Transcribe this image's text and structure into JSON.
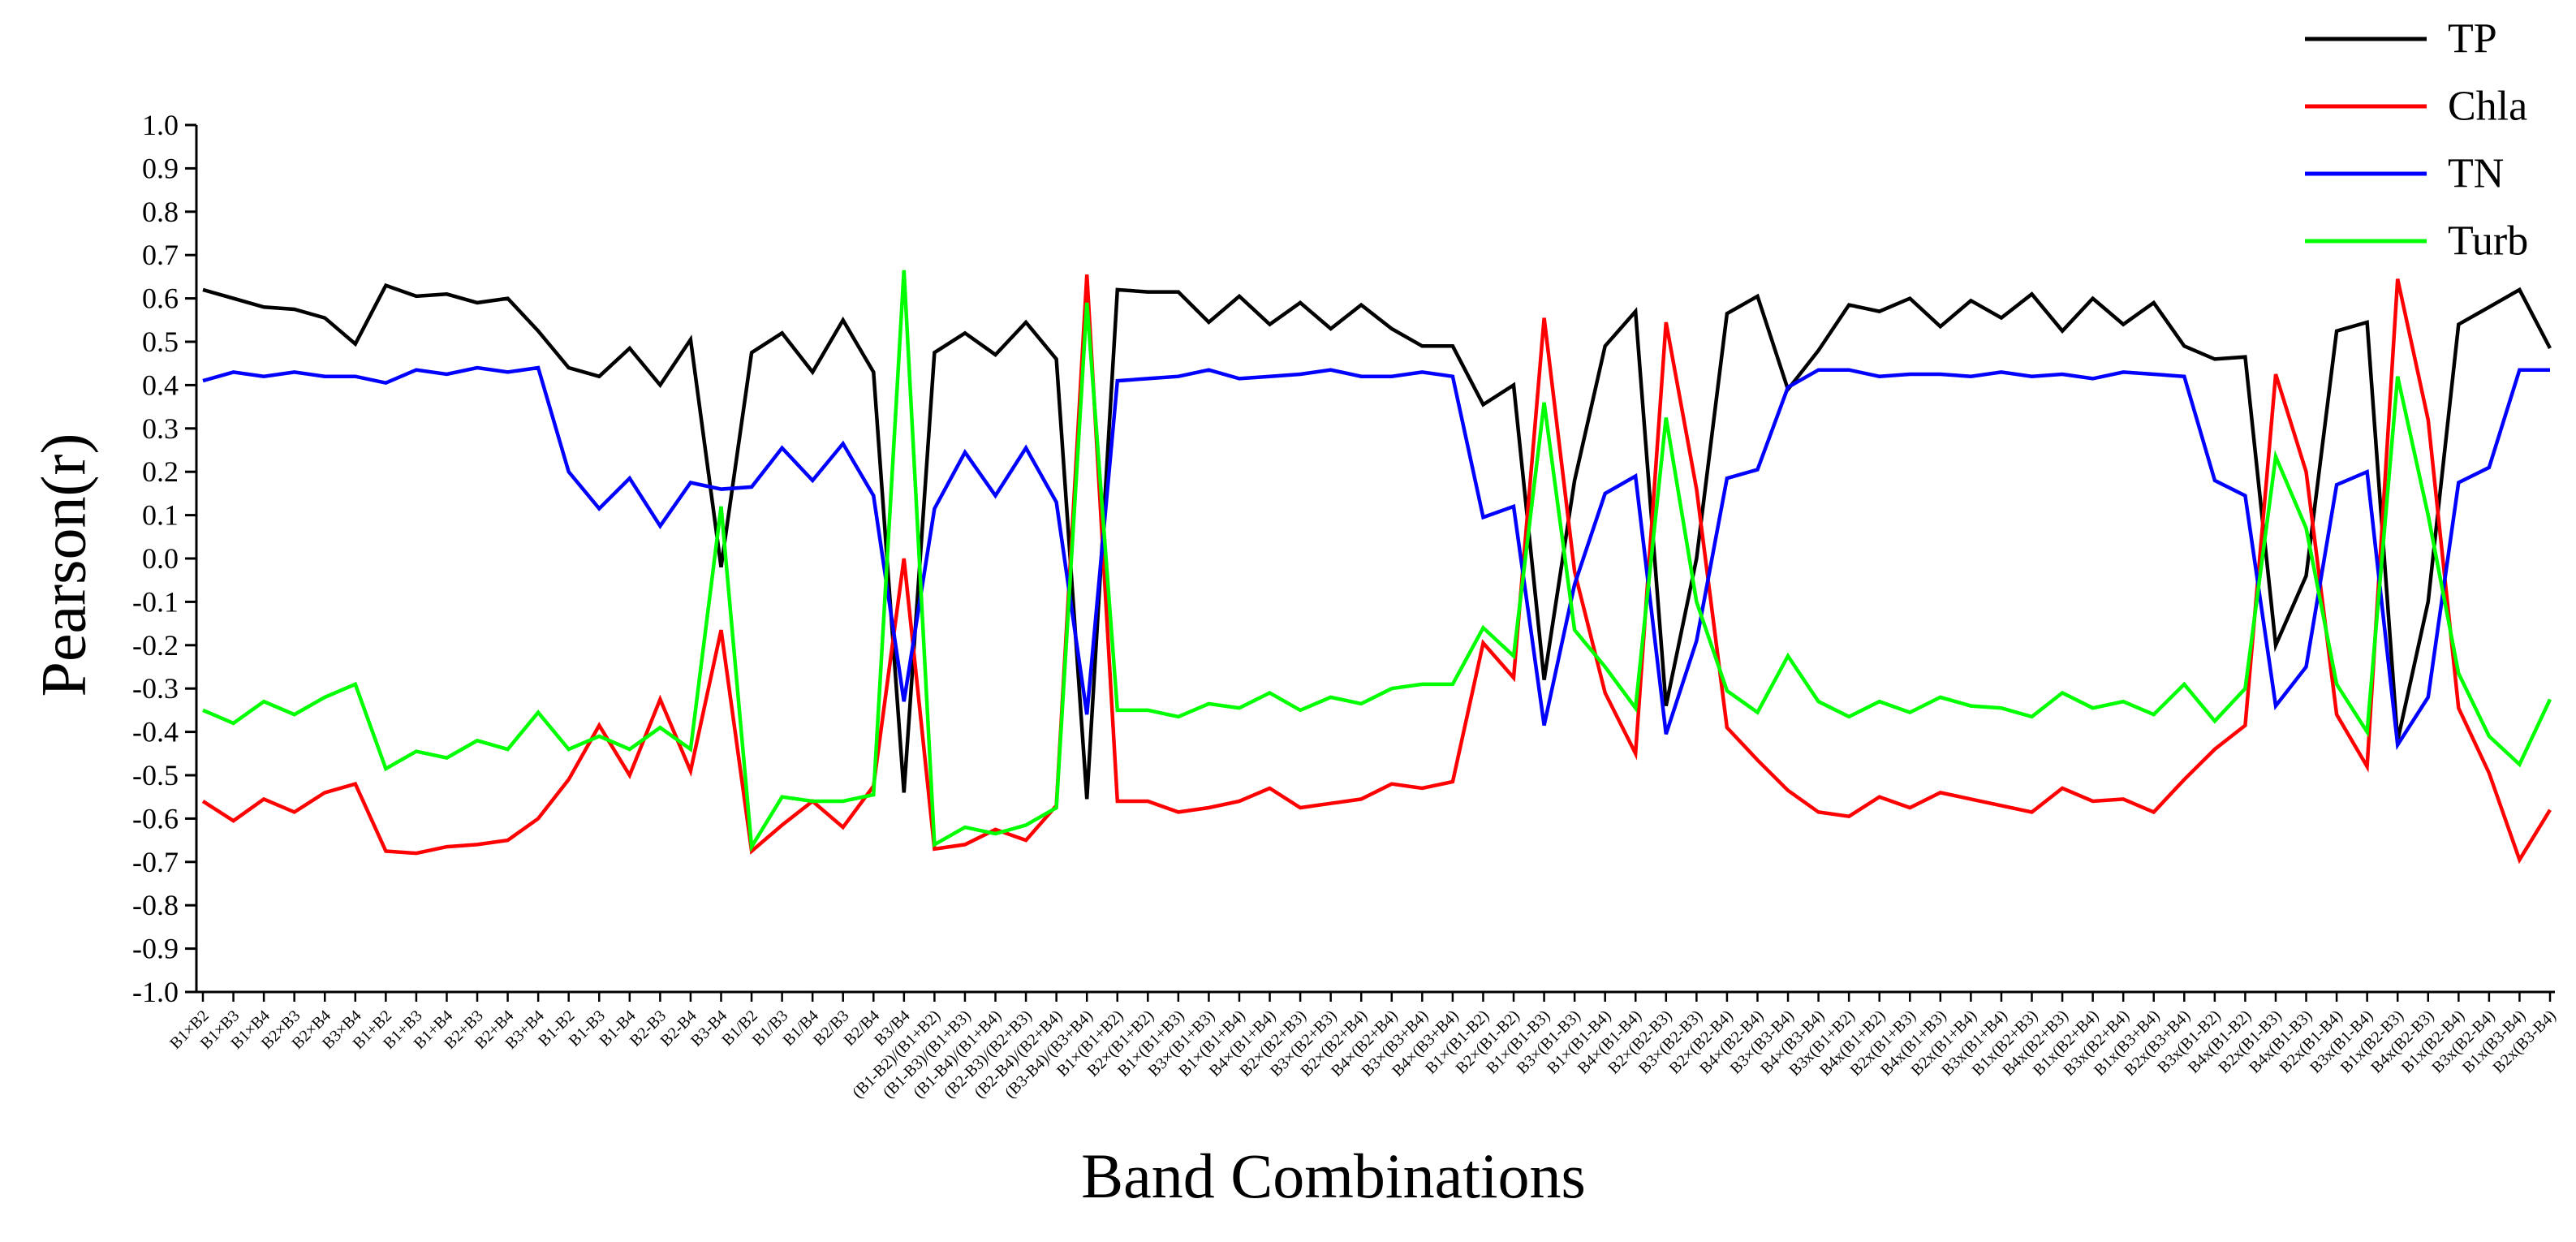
{
  "chart_data": {
    "type": "line",
    "xlabel": "Band Combinations",
    "ylabel": "Pearson(r)",
    "ylim": [
      -1.0,
      1.0
    ],
    "yticks": [
      1.0,
      0.9,
      0.8,
      0.7,
      0.6,
      0.5,
      0.4,
      0.3,
      0.2,
      0.1,
      0.0,
      -0.1,
      -0.2,
      -0.3,
      -0.4,
      -0.5,
      -0.6,
      -0.7,
      -0.8,
      -0.9,
      -1.0
    ],
    "ytick_labels": [
      "1.0",
      "0.9",
      "0.8",
      "0.7",
      "0.6",
      "0.5",
      "0.4",
      "0.3",
      "0.2",
      "0.1",
      "0.0",
      "-0.1",
      "-0.2",
      "-0.3",
      "-0.4",
      "-0.5",
      "-0.6",
      "-0.7",
      "-0.8",
      "-0.9",
      "-1.0"
    ],
    "grid": false,
    "legend_position": "top-right",
    "categories": [
      "B1×B2",
      "B1×B3",
      "B1×B4",
      "B2×B3",
      "B2×B4",
      "B3×B4",
      "B1+B2",
      "B1+B3",
      "B1+B4",
      "B2+B3",
      "B2+B4",
      "B3+B4",
      "B1-B2",
      "B1-B3",
      "B1-B4",
      "B2-B3",
      "B2-B4",
      "B3-B4",
      "B1/B2",
      "B1/B3",
      "B1/B4",
      "B2/B3",
      "B2/B4",
      "B3/B4",
      "(B1-B2)/(B1+B2)",
      "(B1-B3)/(B1+B3)",
      "(B1-B4)/(B1+B4)",
      "(B2-B3)/(B2+B3)",
      "(B2-B4)/(B2+B4)",
      "(B3-B4)/(B3+B4)",
      "B1×(B1+B2)",
      "B2×(B1+B2)",
      "B1×(B1+B3)",
      "B3×(B1+B3)",
      "B1×(B1+B4)",
      "B4×(B1+B4)",
      "B2×(B2+B3)",
      "B3×(B2+B3)",
      "B2×(B2+B4)",
      "B4×(B2+B4)",
      "B3×(B3+B4)",
      "B4×(B3+B4)",
      "B1×(B1-B2)",
      "B2×(B1-B2)",
      "B1×(B1-B3)",
      "B3×(B1-B3)",
      "B1×(B1-B4)",
      "B4×(B1-B4)",
      "B2×(B2-B3)",
      "B3×(B2-B3)",
      "B2×(B2-B4)",
      "B4×(B2-B4)",
      "B3×(B3-B4)",
      "B4×(B3-B4)",
      "B3x(B1+B2)",
      "B4x(B1+B2)",
      "B2x(B1+B3)",
      "B4x(B1+B3)",
      "B2x(B1+B4)",
      "B3x(B1+B4)",
      "B1x(B2+B3)",
      "B4x(B2+B3)",
      "B1x(B2+B4)",
      "B3x(B2+B4)",
      "B1x(B3+B4)",
      "B2x(B3+B4)",
      "B3x(B1-B2)",
      "B4x(B1-B2)",
      "B2x(B1-B3)",
      "B4x(B1-B3)",
      "B2x(B1-B4)",
      "B3x(B1-B4)",
      "B1x(B2-B3)",
      "B4x(B2-B3)",
      "B1x(B2-B4)",
      "B3x(B2-B4)",
      "B1x(B3-B4)",
      "B2x(B3-B4)"
    ],
    "series": [
      {
        "name": "TP",
        "color": "#000000",
        "values": [
          0.62,
          0.6,
          0.58,
          0.575,
          0.555,
          0.495,
          0.63,
          0.605,
          0.61,
          0.59,
          0.6,
          0.525,
          0.44,
          0.42,
          0.485,
          0.4,
          0.505,
          -0.02,
          0.475,
          0.52,
          0.43,
          0.55,
          0.43,
          -0.54,
          0.475,
          0.52,
          0.47,
          0.545,
          0.46,
          -0.555,
          0.62,
          0.615,
          0.615,
          0.545,
          0.605,
          0.54,
          0.59,
          0.53,
          0.585,
          0.53,
          0.49,
          0.49,
          0.355,
          0.4,
          -0.28,
          0.18,
          0.49,
          0.57,
          -0.34,
          0.0,
          0.565,
          0.605,
          0.39,
          0.48,
          0.585,
          0.57,
          0.6,
          0.535,
          0.595,
          0.555,
          0.61,
          0.525,
          0.6,
          0.54,
          0.59,
          0.49,
          0.46,
          0.465,
          -0.2,
          -0.04,
          0.525,
          0.545,
          -0.42,
          -0.1,
          0.54,
          0.58,
          0.62,
          0.485
        ]
      },
      {
        "name": "Chla",
        "color": "#ff0000",
        "values": [
          -0.56,
          -0.605,
          -0.555,
          -0.585,
          -0.54,
          -0.52,
          -0.675,
          -0.68,
          -0.665,
          -0.66,
          -0.65,
          -0.6,
          -0.51,
          -0.385,
          -0.5,
          -0.325,
          -0.49,
          -0.165,
          -0.675,
          -0.615,
          -0.56,
          -0.62,
          -0.525,
          0.0,
          -0.67,
          -0.66,
          -0.625,
          -0.65,
          -0.57,
          0.655,
          -0.56,
          -0.56,
          -0.585,
          -0.575,
          -0.56,
          -0.53,
          -0.575,
          -0.565,
          -0.555,
          -0.52,
          -0.53,
          -0.515,
          -0.195,
          -0.275,
          0.555,
          -0.03,
          -0.31,
          -0.45,
          0.545,
          0.16,
          -0.39,
          -0.465,
          -0.535,
          -0.585,
          -0.595,
          -0.55,
          -0.575,
          -0.54,
          -0.555,
          -0.57,
          -0.585,
          -0.53,
          -0.56,
          -0.555,
          -0.585,
          -0.51,
          -0.44,
          -0.385,
          0.425,
          0.2,
          -0.36,
          -0.48,
          0.645,
          0.32,
          -0.345,
          -0.495,
          -0.695,
          -0.58
        ]
      },
      {
        "name": "TN",
        "color": "#0000ff",
        "values": [
          0.41,
          0.43,
          0.42,
          0.43,
          0.42,
          0.42,
          0.405,
          0.435,
          0.425,
          0.44,
          0.43,
          0.44,
          0.2,
          0.115,
          0.185,
          0.075,
          0.175,
          0.16,
          0.165,
          0.255,
          0.18,
          0.265,
          0.145,
          -0.33,
          0.115,
          0.245,
          0.145,
          0.255,
          0.13,
          -0.36,
          0.41,
          0.415,
          0.42,
          0.435,
          0.415,
          0.42,
          0.425,
          0.435,
          0.42,
          0.42,
          0.43,
          0.42,
          0.095,
          0.12,
          -0.385,
          -0.06,
          0.15,
          0.19,
          -0.405,
          -0.19,
          0.185,
          0.205,
          0.395,
          0.435,
          0.435,
          0.42,
          0.425,
          0.425,
          0.42,
          0.43,
          0.42,
          0.425,
          0.415,
          0.43,
          0.425,
          0.42,
          0.18,
          0.145,
          -0.34,
          -0.25,
          0.17,
          0.2,
          -0.43,
          -0.32,
          0.175,
          0.21,
          0.435,
          0.435
        ]
      },
      {
        "name": "Turb",
        "color": "#00ff00",
        "values": [
          -0.35,
          -0.38,
          -0.33,
          -0.36,
          -0.32,
          -0.29,
          -0.485,
          -0.445,
          -0.46,
          -0.42,
          -0.44,
          -0.355,
          -0.44,
          -0.41,
          -0.44,
          -0.39,
          -0.44,
          0.12,
          -0.665,
          -0.55,
          -0.56,
          -0.56,
          -0.545,
          0.665,
          -0.66,
          -0.62,
          -0.635,
          -0.615,
          -0.575,
          0.59,
          -0.35,
          -0.35,
          -0.365,
          -0.335,
          -0.345,
          -0.31,
          -0.35,
          -0.32,
          -0.335,
          -0.3,
          -0.29,
          -0.29,
          -0.16,
          -0.225,
          0.36,
          -0.165,
          -0.25,
          -0.345,
          0.325,
          -0.1,
          -0.305,
          -0.355,
          -0.225,
          -0.33,
          -0.365,
          -0.33,
          -0.355,
          -0.32,
          -0.34,
          -0.345,
          -0.365,
          -0.31,
          -0.345,
          -0.33,
          -0.36,
          -0.29,
          -0.375,
          -0.3,
          0.235,
          0.07,
          -0.29,
          -0.4,
          0.42,
          0.1,
          -0.265,
          -0.41,
          -0.475,
          -0.325
        ]
      }
    ]
  }
}
